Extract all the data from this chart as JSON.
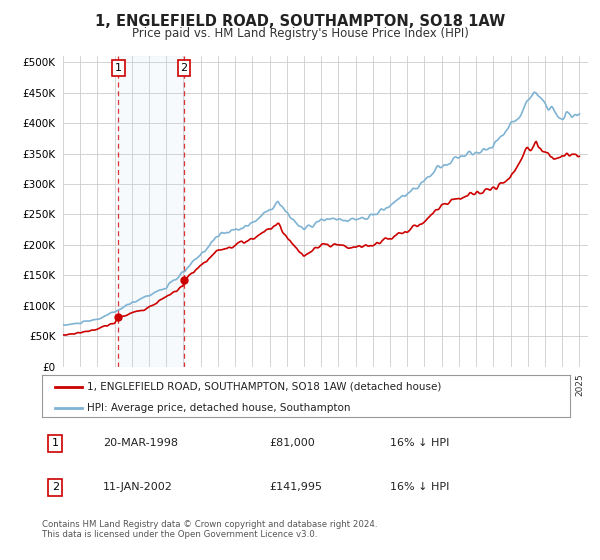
{
  "title": "1, ENGLEFIELD ROAD, SOUTHAMPTON, SO18 1AW",
  "subtitle": "Price paid vs. HM Land Registry's House Price Index (HPI)",
  "legend_entry1": "1, ENGLEFIELD ROAD, SOUTHAMPTON, SO18 1AW (detached house)",
  "legend_entry2": "HPI: Average price, detached house, Southampton",
  "annotation1_date": "20-MAR-1998",
  "annotation1_price": "£81,000",
  "annotation1_hpi": "16% ↓ HPI",
  "annotation2_date": "11-JAN-2002",
  "annotation2_price": "£141,995",
  "annotation2_hpi": "16% ↓ HPI",
  "footer": "Contains HM Land Registry data © Crown copyright and database right 2024.\nThis data is licensed under the Open Government Licence v3.0.",
  "ylim": [
    0,
    510000
  ],
  "yticks": [
    0,
    50000,
    100000,
    150000,
    200000,
    250000,
    300000,
    350000,
    400000,
    450000,
    500000
  ],
  "red_color": "#cc0000",
  "blue_color": "#7fb3d3",
  "sale1_x": 1998.22,
  "sale1_y": 81000,
  "sale2_x": 2002.03,
  "sale2_y": 141995,
  "vline1_x": 1998.22,
  "vline2_x": 2002.03,
  "shade_xmin": 1998.22,
  "shade_xmax": 2002.03,
  "xmin": 1995.0,
  "xmax": 2025.5
}
